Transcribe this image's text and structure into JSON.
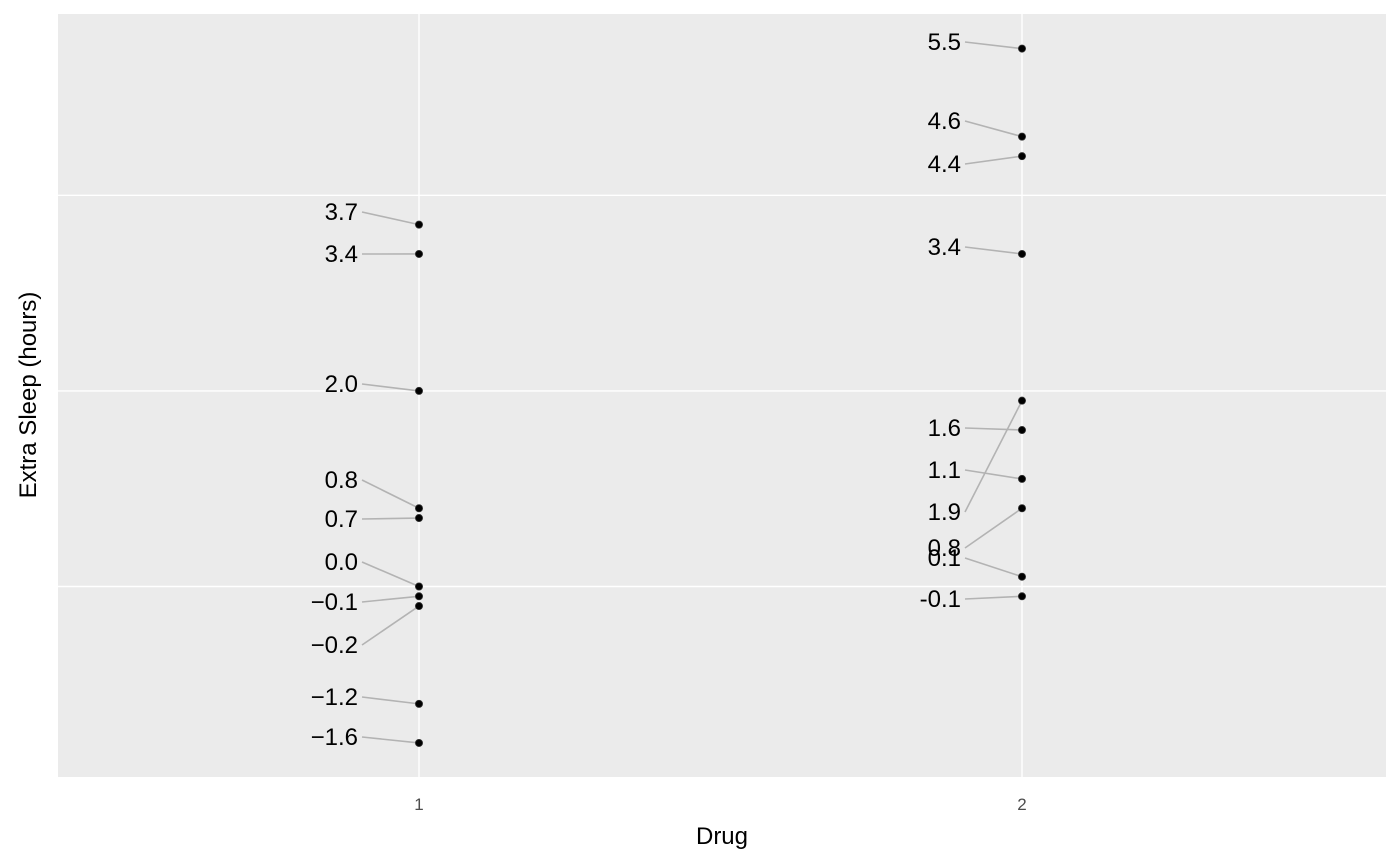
{
  "chart_data": {
    "type": "scatter",
    "xlabel": "Drug",
    "ylabel": "Extra Sleep (hours)",
    "categories": [
      "1",
      "2"
    ],
    "ylim": [
      -1.97,
      5.86
    ],
    "y_gridlines": [
      0,
      2,
      4
    ],
    "y_tick_labels_shown": false,
    "grid": true,
    "series": [
      {
        "x": "1",
        "values": [
          0.7,
          -1.6,
          -0.2,
          -1.2,
          -0.1,
          3.4,
          3.7,
          0.8,
          0.0,
          2.0
        ],
        "labels": [
          "0.7",
          "−1.6",
          "−0.2",
          "−1.2",
          "−0.1",
          "3.4",
          "3.7",
          "0.8",
          "0.0",
          "2.0"
        ]
      },
      {
        "x": "2",
        "values": [
          1.9,
          0.8,
          1.1,
          0.1,
          -0.1,
          4.4,
          5.5,
          1.6,
          4.6,
          3.4
        ],
        "labels": [
          "1.9",
          "0.8",
          "1.1",
          "0.1",
          "-0.1",
          "4.4",
          "5.5",
          "1.6",
          "4.6",
          "3.4"
        ]
      }
    ]
  }
}
